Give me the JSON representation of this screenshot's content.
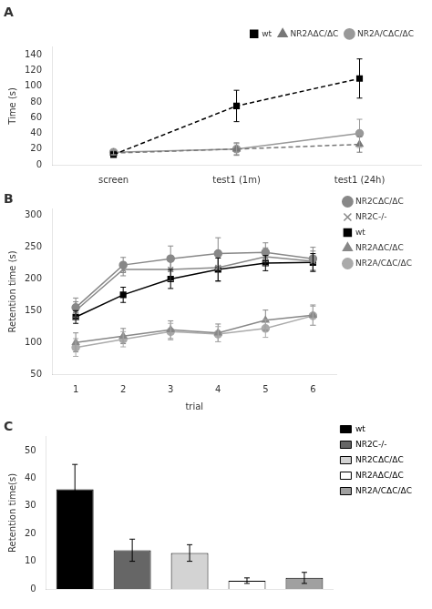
{
  "chart_data": [
    {
      "type": "line",
      "title": "A",
      "categories": [
        "screen",
        "test1 (1m)",
        "test1 (24h)"
      ],
      "ylabel": "Time (s)",
      "ylim": [
        0,
        150
      ],
      "yticks": [
        0,
        20,
        40,
        60,
        80,
        100,
        120,
        140
      ],
      "grid": false,
      "legend": "upper right",
      "series": [
        {
          "name": "wt",
          "color": "#000000",
          "marker": "square",
          "line_style": "dashed",
          "values": [
            13,
            75,
            110
          ],
          "yerr": [
            3,
            20,
            25
          ]
        },
        {
          "name": "NR2AΔC/ΔC",
          "color": "#777777",
          "marker": "triangle",
          "line_style": "dashed",
          "values": [
            15,
            20,
            26
          ],
          "yerr": [
            3,
            8,
            10
          ]
        },
        {
          "name": "NR2A/CΔC/ΔC",
          "color": "#999999",
          "marker": "circle",
          "line_style": "solid",
          "values": [
            16,
            20,
            40
          ],
          "yerr": [
            3,
            7,
            18
          ]
        }
      ]
    },
    {
      "type": "line",
      "title": "B",
      "x": [
        1,
        2,
        3,
        4,
        5,
        6
      ],
      "xlabel": "trial",
      "xlim": [
        0.5,
        6.5
      ],
      "xticks": [
        1,
        2,
        3,
        4,
        5,
        6
      ],
      "ylabel": "Retention time (s)",
      "ylim": [
        50,
        310
      ],
      "yticks": [
        50,
        100,
        150,
        200,
        250,
        300
      ],
      "grid": false,
      "legend": "right",
      "series": [
        {
          "name": "NR2CΔC/ΔC",
          "color": "#888888",
          "marker": "circle",
          "line_style": "solid",
          "values": [
            155,
            222,
            232,
            240,
            242,
            232
          ],
          "yerr": [
            15,
            12,
            20,
            25,
            15,
            18
          ]
        },
        {
          "name": "NR2C-/-",
          "color": "#888888",
          "marker": "x",
          "line_style": "solid",
          "values": [
            150,
            215,
            215,
            218,
            235,
            228
          ],
          "yerr": [
            14,
            10,
            18,
            22,
            14,
            16
          ]
        },
        {
          "name": "wt",
          "color": "#000000",
          "marker": "square",
          "line_style": "solid",
          "values": [
            140,
            175,
            200,
            215,
            225,
            226
          ],
          "yerr": [
            10,
            12,
            15,
            18,
            12,
            14
          ]
        },
        {
          "name": "NR2AΔC/ΔC",
          "color": "#888888",
          "marker": "triangle",
          "line_style": "solid",
          "values": [
            100,
            110,
            120,
            115,
            135,
            143
          ],
          "yerr": [
            15,
            12,
            14,
            14,
            16,
            16
          ]
        },
        {
          "name": "NR2A/CΔC/ΔC",
          "color": "#aaaaaa",
          "marker": "circle",
          "line_style": "solid",
          "values": [
            92,
            105,
            117,
            113,
            122,
            142
          ],
          "yerr": [
            14,
            12,
            13,
            12,
            14,
            15
          ]
        }
      ]
    },
    {
      "type": "bar",
      "title": "C",
      "categories": [
        "wt",
        "NR2C-/-",
        "NR2CΔC/ΔC",
        "NR2AΔC/ΔC",
        "NR2A/CΔC/ΔC"
      ],
      "values": [
        36,
        14,
        13,
        3,
        4
      ],
      "yerr": [
        9,
        4,
        3,
        1,
        2
      ],
      "colors": [
        "#000000",
        "#666666",
        "#d3d3d3",
        "#ffffff",
        "#a0a0a0"
      ],
      "ylabel": "Retention time(s)",
      "ylim": [
        0,
        55
      ],
      "yticks": [
        0,
        10,
        20,
        30,
        40,
        50
      ],
      "grid": false,
      "legend": "right",
      "tick_labels": "y"
    }
  ]
}
